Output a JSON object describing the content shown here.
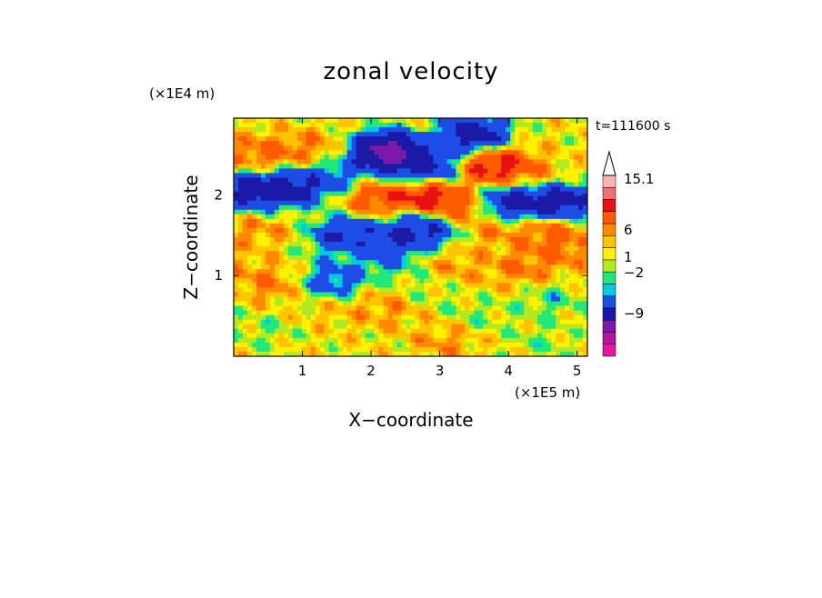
{
  "chart_data": {
    "type": "heatmap",
    "title": "zonal velocity",
    "xlabel": "X−coordinate",
    "ylabel": "Z−coordinate",
    "x_unit": "(×1E5 m)",
    "y_unit": "(×1E4 m)",
    "time_label": "t=111600 s",
    "xlim": [
      0,
      5.15
    ],
    "ylim": [
      0,
      2.95
    ],
    "x_ticks": [
      1,
      2,
      3,
      4,
      5
    ],
    "y_ticks": [
      1,
      2
    ],
    "x_tick_labels": [
      "1",
      "2",
      "3",
      "4",
      "5"
    ],
    "y_tick_labels": [
      "1",
      "2"
    ],
    "colorbar": {
      "colors": [
        "#e8129e",
        "#b1169e",
        "#7b1aa8",
        "#1a1aa6",
        "#1e4de6",
        "#00c8e6",
        "#22e87a",
        "#b4e820",
        "#fff200",
        "#ffc400",
        "#ff8a00",
        "#ff5a00",
        "#e81010",
        "#f07070",
        "#f9b4b4"
      ],
      "labels": [
        "15.1",
        "6",
        "1",
        "−2",
        "−9"
      ],
      "label_levels": [
        15.1,
        6,
        1,
        -2,
        -9
      ],
      "extend": "max"
    },
    "field_blobs": [
      {
        "x": 0.4,
        "z": 2.5,
        "v": 5
      },
      {
        "x": 1.1,
        "z": 2.55,
        "v": 4
      },
      {
        "x": 0.3,
        "z": 2.05,
        "v": -12
      },
      {
        "x": 0.9,
        "z": 2.1,
        "v": -10
      },
      {
        "x": 1.45,
        "z": 2.25,
        "v": -5
      },
      {
        "x": 2.3,
        "z": 2.5,
        "v": -12
      },
      {
        "x": 2.2,
        "z": 2.55,
        "v": -14
      },
      {
        "x": 2.8,
        "z": 2.35,
        "v": -9
      },
      {
        "x": 3.5,
        "z": 2.75,
        "v": -12
      },
      {
        "x": 3.8,
        "z": 2.35,
        "v": 9
      },
      {
        "x": 4.2,
        "z": 2.3,
        "v": 4
      },
      {
        "x": 4.1,
        "z": 1.9,
        "v": -12
      },
      {
        "x": 4.8,
        "z": 1.9,
        "v": -11
      },
      {
        "x": 2.1,
        "z": 1.95,
        "v": 6
      },
      {
        "x": 2.85,
        "z": 1.95,
        "v": 10
      },
      {
        "x": 3.2,
        "z": 1.8,
        "v": 5
      },
      {
        "x": 1.6,
        "z": 1.5,
        "v": -9
      },
      {
        "x": 2.3,
        "z": 1.45,
        "v": -7
      },
      {
        "x": 2.8,
        "z": 1.6,
        "v": -11
      },
      {
        "x": 2.2,
        "z": 1.2,
        "v": -4
      },
      {
        "x": 0.3,
        "z": 1.55,
        "v": 3
      },
      {
        "x": 1.6,
        "z": 1.15,
        "v": -2
      },
      {
        "x": 1.5,
        "z": 0.6,
        "v": 2
      },
      {
        "x": 1.45,
        "z": 0.9,
        "v": -6
      },
      {
        "x": 0.5,
        "z": 0.9,
        "v": 4
      },
      {
        "x": 0.4,
        "z": 0.3,
        "v": -1
      },
      {
        "x": 2.2,
        "z": 0.6,
        "v": 3
      },
      {
        "x": 2.8,
        "z": 0.85,
        "v": -1
      },
      {
        "x": 3.2,
        "z": 1.1,
        "v": 3
      },
      {
        "x": 3.6,
        "z": 0.5,
        "v": -1
      },
      {
        "x": 4.2,
        "z": 1.1,
        "v": 4
      },
      {
        "x": 4.6,
        "z": 0.7,
        "v": -2
      },
      {
        "x": 4.8,
        "z": 1.3,
        "v": 4
      },
      {
        "x": 3.8,
        "z": 1.55,
        "v": 3
      },
      {
        "x": 4.6,
        "z": 1.55,
        "v": 5
      },
      {
        "x": 0.1,
        "z": 1.1,
        "v": 2
      },
      {
        "x": 3.1,
        "z": 0.2,
        "v": 3
      },
      {
        "x": 4.5,
        "z": 0.2,
        "v": -1
      }
    ]
  }
}
